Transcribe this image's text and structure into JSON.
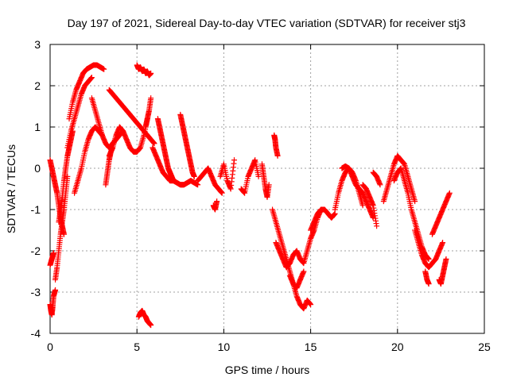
{
  "chart_data": {
    "type": "scatter",
    "title": "Day 197 of 2021, Sidereal Day-to-day VTEC variation (SDTVAR) for receiver stj3",
    "xlabel": "GPS time / hours",
    "ylabel": "SDTVAR / TECUs",
    "xlim": [
      0,
      25
    ],
    "ylim": [
      -4,
      3
    ],
    "xticks": [
      "0",
      "5",
      "10",
      "15",
      "20",
      "25"
    ],
    "yticks": [
      "-4",
      "-3",
      "-2",
      "-1",
      "0",
      "1",
      "2",
      "3"
    ],
    "grid": true,
    "marker": "+",
    "marker_color": "#ff0000",
    "series": [
      {
        "name": "SDTVAR",
        "segments": [
          {
            "x": [
              0.0,
              0.1,
              0.2,
              0.3,
              0.4,
              0.5,
              0.6,
              0.7,
              0.8
            ],
            "y": [
              0.2,
              0.0,
              -0.2,
              -0.4,
              -0.6,
              -0.9,
              -1.2,
              -1.4,
              -1.6
            ]
          },
          {
            "x": [
              0.0,
              0.05,
              0.1,
              0.15,
              0.2,
              0.3
            ],
            "y": [
              -3.3,
              -3.45,
              -3.55,
              -3.35,
              -3.1,
              -2.95
            ]
          },
          {
            "x": [
              0.0,
              0.1,
              0.2
            ],
            "y": [
              -2.35,
              -2.2,
              -2.05
            ]
          },
          {
            "x": [
              0.3,
              0.4,
              0.5,
              0.6,
              0.7,
              0.8,
              0.9,
              1.0
            ],
            "y": [
              -2.7,
              -2.4,
              -2.0,
              -1.6,
              -1.3,
              -1.0,
              -0.6,
              -0.2
            ]
          },
          {
            "x": [
              0.5,
              0.6,
              0.7,
              0.8,
              0.9,
              1.0,
              1.1,
              1.2,
              1.3
            ],
            "y": [
              -1.3,
              -1.0,
              -0.7,
              -0.3,
              0.0,
              0.3,
              0.5,
              0.7,
              0.9
            ]
          },
          {
            "x": [
              1.1,
              1.3,
              1.5,
              1.7,
              1.9,
              2.1,
              2.3,
              2.5,
              2.7,
              2.9,
              3.1
            ],
            "y": [
              1.2,
              1.6,
              1.9,
              2.1,
              2.3,
              2.4,
              2.45,
              2.5,
              2.5,
              2.45,
              2.4
            ]
          },
          {
            "x": [
              1.0,
              1.2,
              1.4,
              1.6,
              1.8,
              2.0,
              2.2,
              2.4
            ],
            "y": [
              0.5,
              0.9,
              1.2,
              1.5,
              1.8,
              2.0,
              2.1,
              2.2
            ]
          },
          {
            "x": [
              1.4,
              1.6,
              1.8,
              2.0,
              2.2,
              2.4,
              2.6,
              2.8,
              3.0
            ],
            "y": [
              -0.6,
              -0.3,
              0.0,
              0.4,
              0.7,
              0.9,
              1.0,
              0.9,
              0.8
            ]
          },
          {
            "x": [
              2.4,
              2.6,
              2.8,
              3.0,
              3.2,
              3.4,
              3.6,
              3.8,
              4.0,
              4.2
            ],
            "y": [
              1.7,
              1.4,
              1.1,
              0.8,
              0.6,
              0.5,
              0.6,
              0.7,
              0.8,
              0.9
            ]
          },
          {
            "x": [
              3.2,
              3.3,
              3.4,
              3.5,
              3.6
            ],
            "y": [
              -0.4,
              -0.1,
              0.2,
              0.4,
              0.5
            ]
          },
          {
            "x": [
              3.4,
              3.6,
              3.8,
              4.0,
              4.2,
              4.4,
              4.6,
              4.8,
              5.0,
              5.2,
              5.4,
              5.6,
              5.8,
              6.0
            ],
            "y": [
              1.9,
              1.8,
              1.7,
              1.6,
              1.5,
              1.4,
              1.3,
              1.2,
              1.1,
              1.0,
              0.9,
              0.8,
              0.7,
              0.6
            ]
          },
          {
            "x": [
              3.4,
              3.6,
              3.8,
              4.0,
              4.2,
              4.4,
              4.6,
              4.8,
              5.0,
              5.2,
              5.4,
              5.6
            ],
            "y": [
              0.3,
              0.5,
              0.8,
              1.0,
              0.9,
              0.7,
              0.5,
              0.4,
              0.4,
              0.5,
              0.8,
              1.2
            ]
          },
          {
            "x": [
              5.0,
              5.1,
              5.2,
              5.3,
              5.4,
              5.5,
              5.6,
              5.7,
              5.8
            ],
            "y": [
              2.5,
              2.4,
              2.45,
              2.35,
              2.4,
              2.3,
              2.35,
              2.25,
              2.3
            ]
          },
          {
            "x": [
              5.5,
              5.6,
              5.7,
              5.8
            ],
            "y": [
              1.0,
              1.2,
              1.4,
              1.7
            ]
          },
          {
            "x": [
              5.1,
              5.2,
              5.3,
              5.4,
              5.5,
              5.6,
              5.7,
              5.8
            ],
            "y": [
              -3.6,
              -3.5,
              -3.45,
              -3.55,
              -3.6,
              -3.7,
              -3.75,
              -3.8
            ]
          },
          {
            "x": [
              5.9,
              6.1,
              6.3,
              6.5,
              6.7,
              6.9,
              7.1,
              7.3,
              7.5,
              7.7,
              7.9,
              8.1,
              8.3,
              8.5
            ],
            "y": [
              0.5,
              0.3,
              0.1,
              -0.1,
              -0.2,
              -0.3,
              -0.3,
              -0.35,
              -0.4,
              -0.4,
              -0.35,
              -0.3,
              -0.35,
              -0.4
            ]
          },
          {
            "x": [
              6.2,
              6.3,
              6.4,
              6.5,
              6.6,
              6.7,
              6.8,
              6.9,
              7.0,
              7.1
            ],
            "y": [
              1.2,
              1.0,
              0.8,
              0.6,
              0.4,
              0.2,
              0.0,
              -0.1,
              -0.2,
              -0.3
            ]
          },
          {
            "x": [
              7.5,
              7.6,
              7.7,
              7.8,
              7.9,
              8.0,
              8.1,
              8.2,
              8.3
            ],
            "y": [
              1.3,
              1.1,
              0.9,
              0.7,
              0.5,
              0.3,
              0.1,
              -0.1,
              -0.2
            ]
          },
          {
            "x": [
              8.5,
              8.7,
              8.9,
              9.1,
              9.3,
              9.5,
              9.7,
              9.9
            ],
            "y": [
              -0.3,
              -0.2,
              -0.1,
              0.0,
              -0.2,
              -0.4,
              -0.5,
              -0.6
            ]
          },
          {
            "x": [
              9.4,
              9.5,
              9.6
            ],
            "y": [
              -0.9,
              -1.0,
              -0.8
            ]
          },
          {
            "x": [
              9.8,
              10.0,
              10.2,
              10.4,
              10.6
            ],
            "y": [
              -0.2,
              0.1,
              -0.3,
              -0.5,
              0.2
            ]
          },
          {
            "x": [
              11.0,
              11.2,
              11.4,
              11.6,
              11.8,
              12.0
            ],
            "y": [
              -0.5,
              -0.6,
              -0.2,
              0.0,
              0.2,
              -0.2
            ]
          },
          {
            "x": [
              12.2,
              12.3,
              12.4,
              12.5,
              12.6
            ],
            "y": [
              0.1,
              -0.2,
              -0.5,
              -0.7,
              -0.4
            ]
          },
          {
            "x": [
              12.9,
              12.95,
              13.0,
              13.1
            ],
            "y": [
              0.8,
              0.7,
              0.5,
              0.3
            ]
          },
          {
            "x": [
              12.8,
              13.0,
              13.2,
              13.4,
              13.6,
              13.8,
              14.0,
              14.2,
              14.4,
              14.6,
              14.8,
              15.0
            ],
            "y": [
              -1.0,
              -1.3,
              -1.6,
              -1.9,
              -2.2,
              -2.5,
              -2.8,
              -3.1,
              -3.3,
              -3.4,
              -3.2,
              -3.3
            ]
          },
          {
            "x": [
              13.0,
              13.2,
              13.4,
              13.6,
              13.8,
              14.0,
              14.2,
              14.4,
              14.6,
              14.8,
              15.0,
              15.2,
              15.4,
              15.6
            ],
            "y": [
              -1.8,
              -2.0,
              -2.2,
              -2.4,
              -2.3,
              -2.1,
              -2.0,
              -2.2,
              -2.3,
              -2.0,
              -1.7,
              -1.5,
              -1.2,
              -1.0
            ]
          },
          {
            "x": [
              13.8,
              14.0,
              14.2,
              14.4,
              14.6
            ],
            "y": [
              -2.6,
              -2.8,
              -2.9,
              -2.7,
              -2.5
            ]
          },
          {
            "x": [
              15.0,
              15.2,
              15.4,
              15.6,
              15.8,
              16.0,
              16.2,
              16.4
            ],
            "y": [
              -1.5,
              -1.3,
              -1.1,
              -1.0,
              -1.0,
              -1.1,
              -1.2,
              -1.1
            ]
          },
          {
            "x": [
              16.4,
              16.6,
              16.8,
              17.0,
              17.2,
              17.4,
              17.6,
              17.8,
              18.0
            ],
            "y": [
              -1.0,
              -0.6,
              -0.3,
              -0.1,
              0.0,
              -0.1,
              -0.3,
              -0.6,
              -0.9
            ]
          },
          {
            "x": [
              16.8,
              17.0,
              17.2,
              17.4,
              17.6,
              17.8,
              18.0,
              18.2,
              18.4,
              18.6
            ],
            "y": [
              0.0,
              0.05,
              0.0,
              -0.2,
              -0.4,
              -0.5,
              -0.6,
              -0.8,
              -1.0,
              -1.2
            ]
          },
          {
            "x": [
              18.0,
              18.2,
              18.4,
              18.6,
              18.8
            ],
            "y": [
              -0.4,
              -0.5,
              -0.7,
              -0.9,
              -1.4
            ]
          },
          {
            "x": [
              18.6,
              18.8,
              19.0
            ],
            "y": [
              -0.1,
              -0.2,
              -0.4
            ]
          },
          {
            "x": [
              19.2,
              19.4,
              19.6,
              19.8,
              20.0,
              20.2,
              20.4,
              20.6,
              20.8,
              21.0
            ],
            "y": [
              -0.8,
              -0.5,
              -0.2,
              0.1,
              0.3,
              0.2,
              0.1,
              -0.2,
              -0.5,
              -0.8
            ]
          },
          {
            "x": [
              19.8,
              20.0,
              20.2,
              20.4,
              20.6,
              20.8,
              21.0,
              21.2,
              21.4,
              21.6,
              21.8
            ],
            "y": [
              -0.3,
              -0.1,
              0.0,
              -0.3,
              -0.6,
              -1.0,
              -1.3,
              -1.6,
              -1.9,
              -2.1,
              -2.2
            ]
          },
          {
            "x": [
              21.0,
              21.2,
              21.4,
              21.6,
              21.8,
              22.0,
              22.2,
              22.4,
              22.6
            ],
            "y": [
              -1.5,
              -1.8,
              -2.1,
              -2.3,
              -2.4,
              -2.3,
              -2.2,
              -2.0,
              -1.8
            ]
          },
          {
            "x": [
              21.6,
              21.7,
              21.8
            ],
            "y": [
              -2.5,
              -2.7,
              -2.8
            ]
          },
          {
            "x": [
              22.0,
              22.2,
              22.4,
              22.6,
              22.8,
              23.0
            ],
            "y": [
              -1.6,
              -1.4,
              -1.2,
              -1.0,
              -0.8,
              -0.6
            ]
          },
          {
            "x": [
              22.4,
              22.5,
              22.6,
              22.7,
              22.8
            ],
            "y": [
              -2.7,
              -2.8,
              -2.6,
              -2.4,
              -2.2
            ]
          }
        ]
      }
    ]
  }
}
